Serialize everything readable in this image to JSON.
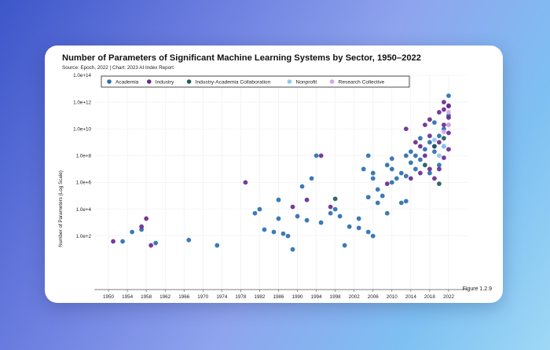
{
  "title": "Number of Parameters of Significant Machine Learning Systems by Sector, 1950–2022",
  "source": "Source: Epoch, 2022 | Chart: 2023 AI Index Report",
  "figure_label": "Figure 1.2.9",
  "chart_data": {
    "type": "scatter",
    "log_y": true,
    "ylabel": "Number of Parameters (Log Scale)",
    "xlim": [
      1947,
      2026
    ],
    "ylim": [
      0.01,
      100000000000000
    ],
    "x_ticks": [
      1950,
      1954,
      1958,
      1962,
      1966,
      1970,
      1974,
      1978,
      1982,
      1986,
      1990,
      1994,
      1998,
      2002,
      2006,
      2010,
      2014,
      2018,
      2022
    ],
    "y_ticks": [
      100,
      10000,
      1000000,
      100000000,
      10000000000,
      1000000000000,
      100000000000000
    ],
    "y_tick_labels": [
      "1.0e+2",
      "1.0e+4",
      "1.0e+6",
      "1.0e+8",
      "1.0e+10",
      "1.0e+12",
      "1.0e+14"
    ],
    "grid": true,
    "legend_position": "top",
    "series": [
      {
        "name": "Academia",
        "color": "#2a6fb0",
        "points": [
          [
            1953,
            40
          ],
          [
            1955,
            200
          ],
          [
            1957,
            300
          ],
          [
            1960,
            30
          ],
          [
            1967,
            50
          ],
          [
            1973,
            20
          ],
          [
            1981,
            5000
          ],
          [
            1982,
            10000
          ],
          [
            1983,
            300
          ],
          [
            1985,
            200
          ],
          [
            1986,
            50000
          ],
          [
            1986,
            2000
          ],
          [
            1987,
            150
          ],
          [
            1988,
            100
          ],
          [
            1989,
            10
          ],
          [
            1990,
            3000
          ],
          [
            1991,
            500000
          ],
          [
            1992,
            1500
          ],
          [
            1993,
            2000000
          ],
          [
            1994,
            100000000
          ],
          [
            1995,
            1000
          ],
          [
            1997,
            5000
          ],
          [
            1998,
            10000
          ],
          [
            1999,
            3000
          ],
          [
            2000,
            20
          ],
          [
            2001,
            500
          ],
          [
            2003,
            400
          ],
          [
            2003,
            2000
          ],
          [
            2004,
            10000000
          ],
          [
            2005,
            200
          ],
          [
            2005,
            80000
          ],
          [
            2005,
            100000000
          ],
          [
            2006,
            100
          ],
          [
            2006,
            2000000
          ],
          [
            2006,
            5000000
          ],
          [
            2007,
            30000
          ],
          [
            2007,
            300000
          ],
          [
            2008,
            100000
          ],
          [
            2009,
            20000000
          ],
          [
            2009,
            5000
          ],
          [
            2010,
            10000000
          ],
          [
            2010,
            1000000
          ],
          [
            2010,
            60000000
          ],
          [
            2011,
            2000000
          ],
          [
            2012,
            30000
          ],
          [
            2012,
            5000000
          ],
          [
            2013,
            100000000
          ],
          [
            2013,
            3000000
          ],
          [
            2013,
            40000
          ],
          [
            2014,
            30000000
          ],
          [
            2014,
            200000000
          ],
          [
            2015,
            100000000
          ],
          [
            2015,
            10000000
          ],
          [
            2016,
            50000000
          ],
          [
            2016,
            2000000000
          ],
          [
            2017,
            300000000
          ],
          [
            2018,
            1000000000
          ],
          [
            2018,
            5000000
          ],
          [
            2019,
            200000000
          ],
          [
            2019,
            30000000000
          ],
          [
            2020,
            3000000000
          ],
          [
            2020,
            20000000
          ],
          [
            2021,
            10000000000
          ],
          [
            2021,
            500000000
          ],
          [
            2022,
            100000000000
          ],
          [
            2022,
            3000000000000
          ]
        ]
      },
      {
        "name": "Industry",
        "color": "#6b2a8f",
        "points": [
          [
            1951,
            40
          ],
          [
            1957,
            500
          ],
          [
            1958,
            2000
          ],
          [
            1959,
            20
          ],
          [
            1979,
            1000000
          ],
          [
            1989,
            15000
          ],
          [
            1992,
            50000
          ],
          [
            1995,
            100000000
          ],
          [
            1997,
            15000
          ],
          [
            2009,
            800000
          ],
          [
            2013,
            10000000000
          ],
          [
            2014,
            2000000
          ],
          [
            2015,
            1000000000
          ],
          [
            2016,
            500000000
          ],
          [
            2016,
            5000000
          ],
          [
            2017,
            20000000000
          ],
          [
            2017,
            100000000
          ],
          [
            2018,
            3000000000
          ],
          [
            2018,
            10000000
          ],
          [
            2018,
            50000000000
          ],
          [
            2019,
            500000000
          ],
          [
            2019,
            2000000
          ],
          [
            2020,
            175000000000
          ],
          [
            2020,
            1000000000
          ],
          [
            2020,
            10000000
          ],
          [
            2021,
            1000000000000
          ],
          [
            2021,
            280000000000
          ],
          [
            2021,
            20000000000
          ],
          [
            2021,
            70000000
          ],
          [
            2022,
            500000000000
          ],
          [
            2022,
            540000000000
          ],
          [
            2022,
            70000000000
          ],
          [
            2022,
            5000000000
          ],
          [
            2022,
            300000000
          ]
        ]
      },
      {
        "name": "Industry-Academia Collaboration",
        "color": "#1f5c5a",
        "points": [
          [
            1998,
            60000
          ],
          [
            2017,
            20000000
          ],
          [
            2019,
            500000000
          ],
          [
            2020,
            800000
          ],
          [
            2021,
            2000000000
          ],
          [
            2022,
            20000000000
          ]
        ]
      },
      {
        "name": "Nonprofit",
        "color": "#8cc8f0",
        "points": [
          [
            2019,
            1500000000
          ],
          [
            2020,
            100000000
          ],
          [
            2021,
            500000000
          ],
          [
            2022,
            20000000000
          ]
        ]
      },
      {
        "name": "Research Collective",
        "color": "#d6a3e8",
        "points": [
          [
            2021,
            6000000000
          ],
          [
            2022,
            20000000000
          ],
          [
            2022,
            176000000000
          ]
        ]
      }
    ]
  }
}
